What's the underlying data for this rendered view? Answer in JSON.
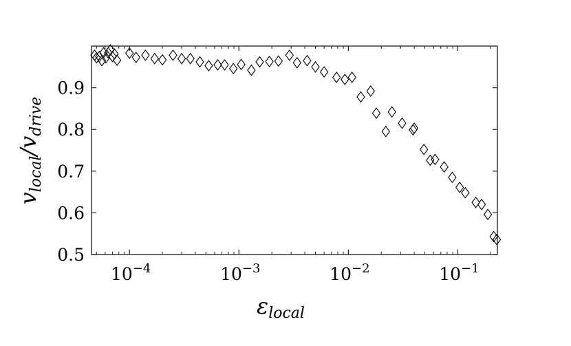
{
  "chart_data": {
    "type": "scatter",
    "title": "",
    "xlabel": {
      "main": "ε",
      "sub": "local"
    },
    "ylabel": {
      "num": "v",
      "num_sub": "local",
      "sep": "/",
      "den": "v",
      "den_sub": "drive"
    },
    "xscale": "log",
    "xlim": [
      4.5e-05,
      0.23
    ],
    "ylim": [
      0.5,
      1.0
    ],
    "xticks": [
      {
        "value": 0.0001,
        "base": "10",
        "exp": "−4"
      },
      {
        "value": 0.001,
        "base": "10",
        "exp": "−3"
      },
      {
        "value": 0.01,
        "base": "10",
        "exp": "−2"
      },
      {
        "value": 0.1,
        "base": "10",
        "exp": "−1"
      }
    ],
    "yticks": [
      {
        "value": 0.5,
        "label": "0.5"
      },
      {
        "value": 0.6,
        "label": "0.6"
      },
      {
        "value": 0.7,
        "label": "0.7"
      },
      {
        "value": 0.8,
        "label": "0.8"
      },
      {
        "value": 0.9,
        "label": "0.9"
      }
    ],
    "grid": false,
    "marker": "diamond",
    "series": [
      {
        "x": [
          4.8e-05,
          5e-05,
          5.3e-05,
          5.6e-05,
          5.8e-05,
          6.1e-05,
          6.4e-05,
          6.7e-05,
          7e-05,
          7.3e-05,
          7.7e-05,
          0.0001,
          0.000115,
          0.00014,
          0.00017,
          0.0002,
          0.00025,
          0.0003,
          0.00036,
          0.00044,
          0.00053,
          0.00064,
          0.00074,
          0.00089,
          0.00105,
          0.0013,
          0.00155,
          0.0019,
          0.0023,
          0.0029,
          0.0034,
          0.0042,
          0.005,
          0.006,
          0.0078,
          0.0093,
          0.0108,
          0.013,
          0.016,
          0.018,
          0.022,
          0.025,
          0.031,
          0.039,
          0.04,
          0.049,
          0.056,
          0.062,
          0.075,
          0.089,
          0.104,
          0.117,
          0.146,
          0.165,
          0.188,
          0.213,
          0.227
        ],
        "y": [
          0.978,
          0.972,
          0.975,
          0.965,
          0.984,
          0.972,
          0.984,
          0.991,
          0.975,
          0.981,
          0.966,
          0.983,
          0.973,
          0.978,
          0.97,
          0.967,
          0.978,
          0.97,
          0.97,
          0.962,
          0.953,
          0.955,
          0.955,
          0.946,
          0.956,
          0.942,
          0.962,
          0.963,
          0.964,
          0.978,
          0.96,
          0.965,
          0.95,
          0.938,
          0.925,
          0.92,
          0.925,
          0.878,
          0.892,
          0.839,
          0.795,
          0.842,
          0.815,
          0.799,
          0.803,
          0.752,
          0.726,
          0.728,
          0.71,
          0.685,
          0.661,
          0.648,
          0.625,
          0.62,
          0.596,
          0.543,
          0.536
        ]
      }
    ]
  }
}
